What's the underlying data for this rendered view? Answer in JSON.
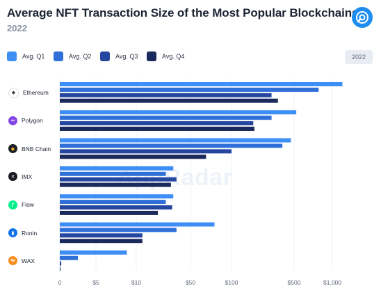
{
  "header": {
    "title": "Average NFT Transaction Size of the Most Popular Blockchains",
    "subtitle": "2022",
    "year_chip": "2022",
    "watermark": "AppRadar"
  },
  "colors": {
    "q1": "#3d8ef5",
    "q2": "#2f6fd8",
    "q3": "#26479f",
    "q4": "#1b2a5c",
    "grid": "#edf0f5",
    "ethereum": "#ffffff",
    "polygon": "#8247e5",
    "bnb": "#f3ba2f",
    "imx": "#17191e",
    "flow": "#00ef8b",
    "ronin": "#1273ea",
    "wax": "#f78e1e"
  },
  "chart_data": {
    "type": "bar",
    "orientation": "horizontal",
    "title": "Average NFT Transaction Size of the Most Popular Blockchains",
    "subtitle": "2022",
    "categories": [
      "Ethereum",
      "Polygon",
      "BNB Chain",
      "IMX",
      "Flow",
      "Ronin",
      "WAX"
    ],
    "category_icons": [
      "ethereum-icon",
      "polygon-icon",
      "bnb-icon",
      "imx-icon",
      "flow-icon",
      "ronin-icon",
      "wax-icon"
    ],
    "series": [
      {
        "name": "Avg. Q1",
        "color_key": "q1",
        "values": [
          1200,
          520,
          460,
          30,
          30,
          75,
          8.5
        ]
      },
      {
        "name": "Avg. Q2",
        "color_key": "q2",
        "values": [
          780,
          280,
          370,
          24,
          24,
          33,
          2.5
        ]
      },
      {
        "name": "Avg. Q3",
        "color_key": "q3",
        "values": [
          280,
          175,
          100,
          33,
          29,
          12,
          0.2
        ]
      },
      {
        "name": "Avg. Q4",
        "color_key": "q4",
        "values": [
          330,
          180,
          65,
          28,
          19,
          12,
          0.05
        ]
      }
    ],
    "x_scale": "log",
    "x_ticks": [
      {
        "value": 0,
        "label": "0"
      },
      {
        "value": 5,
        "label": "$5"
      },
      {
        "value": 10,
        "label": "$10"
      },
      {
        "value": 50,
        "label": "$50"
      },
      {
        "value": 100,
        "label": "$100"
      },
      {
        "value": 500,
        "label": "$500"
      },
      {
        "value": 1000,
        "label": "$1,000"
      }
    ],
    "grid": true,
    "legend_position": "top-left"
  }
}
